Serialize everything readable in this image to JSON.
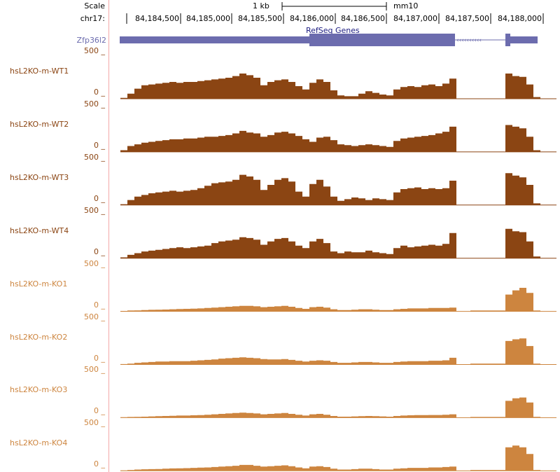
{
  "header": {
    "scale_label": "Scale",
    "scale_bar_label": "1 kb",
    "assembly": "mm10",
    "chrom_label": "chr17:",
    "ticks": [
      "84,184,500",
      "84,185,000",
      "84,185,500",
      "84,186,000",
      "84,186,500",
      "84,187,000",
      "84,187,500",
      "84,188,000"
    ]
  },
  "genes": {
    "track_title": "RefSeq Genes",
    "gene_name": "Zfp36l2",
    "color": "#6c6cae"
  },
  "colors": {
    "wt": "#8b4513",
    "ko": "#cd853f",
    "divider": "#f4a8a8"
  },
  "chart_data": {
    "type": "area",
    "x_start_bp": 84183920,
    "bin_bp": 68,
    "ylim": [
      0,
      500
    ],
    "tracks": [
      {
        "name": "hsL2KO-m-WT1",
        "group": "wt",
        "max_label": "500 _",
        "min_label": "0 _",
        "values": [
          10,
          60,
          120,
          160,
          170,
          180,
          190,
          200,
          190,
          200,
          200,
          210,
          220,
          230,
          240,
          250,
          270,
          300,
          280,
          250,
          160,
          200,
          220,
          230,
          200,
          150,
          110,
          190,
          230,
          200,
          100,
          40,
          30,
          30,
          60,
          90,
          70,
          50,
          40,
          110,
          140,
          150,
          140,
          160,
          170,
          150,
          180,
          240,
          0,
          0,
          0,
          0,
          0,
          0,
          0,
          300,
          270,
          260,
          170,
          20
        ]
      },
      {
        "name": "hsL2KO-m-WT2",
        "group": "wt",
        "max_label": "500 _",
        "min_label": "0 _",
        "values": [
          20,
          70,
          90,
          110,
          120,
          130,
          140,
          150,
          150,
          160,
          160,
          170,
          180,
          180,
          190,
          200,
          220,
          250,
          230,
          220,
          180,
          200,
          230,
          240,
          220,
          190,
          150,
          120,
          170,
          180,
          140,
          90,
          80,
          70,
          80,
          90,
          80,
          70,
          60,
          130,
          160,
          170,
          180,
          190,
          200,
          220,
          240,
          300,
          0,
          0,
          0,
          0,
          0,
          0,
          0,
          320,
          300,
          280,
          180,
          20
        ]
      },
      {
        "name": "hsL2KO-m-WT3",
        "group": "wt",
        "max_label": "500 _",
        "min_label": "0 _",
        "values": [
          10,
          60,
          100,
          120,
          140,
          150,
          160,
          170,
          160,
          170,
          180,
          200,
          230,
          260,
          270,
          280,
          300,
          360,
          340,
          300,
          180,
          240,
          300,
          320,
          280,
          160,
          100,
          250,
          300,
          220,
          100,
          50,
          70,
          90,
          80,
          60,
          80,
          70,
          60,
          150,
          190,
          200,
          210,
          190,
          200,
          190,
          200,
          290,
          0,
          0,
          0,
          0,
          0,
          0,
          0,
          380,
          350,
          330,
          240,
          20
        ]
      },
      {
        "name": "hsL2KO-m-WT4",
        "group": "wt",
        "max_label": "500 _",
        "min_label": "0 _",
        "values": [
          10,
          40,
          60,
          80,
          90,
          100,
          110,
          120,
          130,
          120,
          130,
          140,
          150,
          180,
          200,
          210,
          220,
          250,
          240,
          220,
          160,
          200,
          230,
          240,
          200,
          150,
          120,
          200,
          230,
          180,
          80,
          60,
          80,
          70,
          70,
          90,
          70,
          60,
          50,
          120,
          150,
          130,
          140,
          150,
          160,
          150,
          170,
          300,
          0,
          0,
          0,
          0,
          0,
          0,
          0,
          350,
          320,
          310,
          200,
          20
        ]
      },
      {
        "name": "hsL2KO-m-KO1",
        "group": "ko",
        "max_label": "500 _",
        "min_label": "0 _",
        "values": [
          5,
          10,
          12,
          15,
          18,
          20,
          22,
          25,
          28,
          30,
          32,
          35,
          40,
          45,
          50,
          55,
          60,
          65,
          65,
          60,
          50,
          55,
          60,
          65,
          55,
          40,
          30,
          50,
          55,
          45,
          25,
          15,
          15,
          20,
          25,
          25,
          20,
          15,
          15,
          25,
          30,
          35,
          35,
          35,
          40,
          40,
          40,
          45,
          0,
          0,
          10,
          10,
          10,
          10,
          10,
          200,
          250,
          280,
          220,
          10
        ]
      },
      {
        "name": "hsL2KO-m-KO2",
        "group": "ko",
        "max_label": "500 _",
        "min_label": "0 _",
        "values": [
          5,
          10,
          20,
          25,
          30,
          35,
          35,
          40,
          40,
          40,
          45,
          50,
          55,
          60,
          70,
          75,
          80,
          85,
          80,
          75,
          65,
          60,
          60,
          65,
          55,
          45,
          35,
          45,
          50,
          45,
          30,
          20,
          20,
          25,
          30,
          30,
          25,
          20,
          20,
          30,
          35,
          40,
          40,
          40,
          45,
          45,
          50,
          80,
          0,
          0,
          10,
          10,
          10,
          10,
          10,
          280,
          300,
          310,
          220,
          10
        ]
      },
      {
        "name": "hsL2KO-m-KO3",
        "group": "ko",
        "max_label": "500 _",
        "min_label": "0 _",
        "values": [
          5,
          8,
          10,
          12,
          15,
          18,
          20,
          22,
          25,
          25,
          28,
          30,
          35,
          40,
          45,
          50,
          55,
          60,
          55,
          50,
          40,
          45,
          50,
          55,
          45,
          35,
          25,
          40,
          45,
          35,
          20,
          12,
          12,
          15,
          18,
          20,
          18,
          15,
          12,
          20,
          25,
          28,
          30,
          30,
          32,
          32,
          35,
          40,
          0,
          0,
          8,
          8,
          8,
          8,
          8,
          200,
          230,
          240,
          180,
          10
        ]
      },
      {
        "name": "hsL2KO-m-KO4",
        "group": "ko",
        "max_label": "500 _",
        "min_label": "0 _",
        "values": [
          5,
          10,
          15,
          18,
          20,
          22,
          25,
          28,
          30,
          32,
          35,
          38,
          40,
          45,
          50,
          55,
          60,
          70,
          70,
          60,
          50,
          55,
          60,
          65,
          55,
          40,
          30,
          50,
          55,
          45,
          25,
          15,
          15,
          20,
          25,
          25,
          20,
          15,
          15,
          25,
          30,
          35,
          35,
          35,
          40,
          40,
          45,
          50,
          0,
          0,
          10,
          10,
          10,
          10,
          10,
          280,
          300,
          280,
          200,
          10
        ]
      }
    ]
  }
}
